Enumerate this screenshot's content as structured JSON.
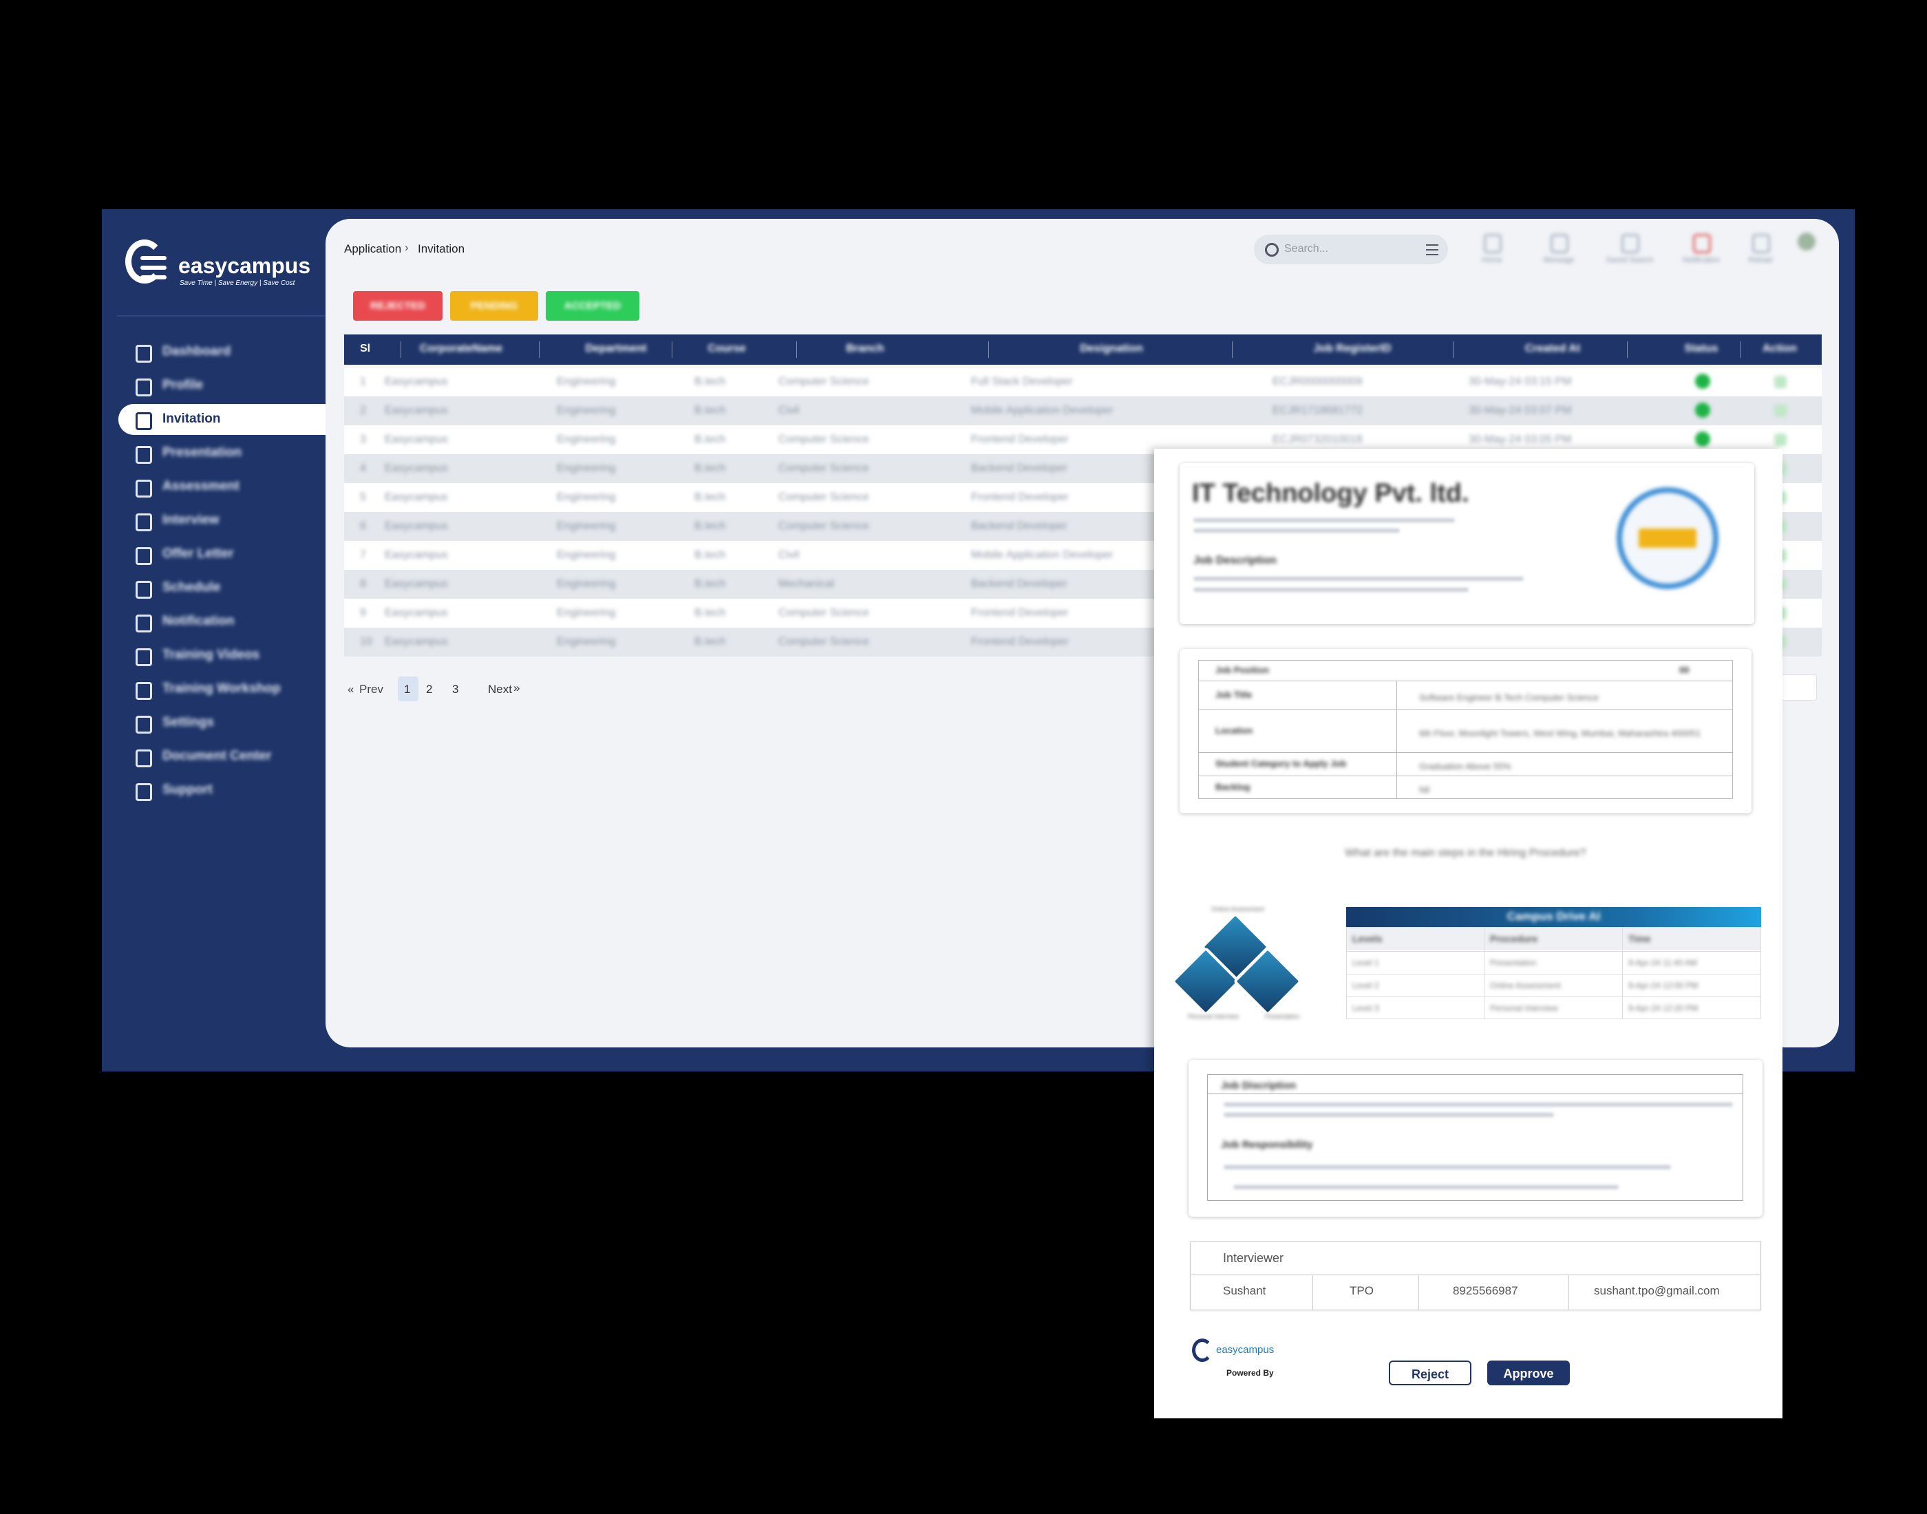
{
  "logo": {
    "brand": "easycampus",
    "tagline": "Save Time | Save Energy | Save Cost"
  },
  "sidebar": {
    "items": [
      "Dashboard",
      "Profile",
      "Invitation",
      "Presentation",
      "Assessment",
      "Interview",
      "Offer Letter",
      "Schedule",
      "Notification",
      "Training Videos",
      "Training Workshop",
      "Settings",
      "Document Center",
      "Support"
    ]
  },
  "breadcrumb": [
    "Application",
    "Invitation"
  ],
  "search": {
    "placeholder": "Search..."
  },
  "toolbar": [
    "Home",
    "Message",
    "Saved Search",
    "Notification",
    "Reload"
  ],
  "status_tabs": [
    "REJECTED",
    "PENDING",
    "ACCEPTED"
  ],
  "table": {
    "headers": [
      "Sl",
      "CorporateName",
      "Department",
      "Course",
      "Branch",
      "Designation",
      "Job RegisterID",
      "Created At",
      "Status",
      "Action"
    ],
    "rows": [
      [
        1,
        "Easycampus",
        "Engineering",
        "B.tech",
        "Computer Science",
        "Full Stack Developer",
        "ECJR0000000009",
        "30-May-24 03:15 PM"
      ],
      [
        2,
        "Easycampus",
        "Engineering",
        "B.tech",
        "Civil",
        "Mobile Application Developer",
        "ECJR1718681772",
        "30-May-24 03:07 PM"
      ],
      [
        3,
        "Easycampus",
        "Engineering",
        "B.tech",
        "Computer Science",
        "Frontend Developer",
        "ECJR0732010018",
        "30-May-24 03:05 PM"
      ],
      [
        4,
        "Easycampus",
        "Engineering",
        "B.tech",
        "Computer Science",
        "Backend Developer"
      ],
      [
        5,
        "Easycampus",
        "Engineering",
        "B.tech",
        "Computer Science",
        "Frontend Developer"
      ],
      [
        6,
        "Easycampus",
        "Engineering",
        "B.tech",
        "Computer Science",
        "Backend Developer"
      ],
      [
        7,
        "Easycampus",
        "Engineering",
        "B.tech",
        "Civil",
        "Mobile Application Developer"
      ],
      [
        8,
        "Easycampus",
        "Engineering",
        "B.tech",
        "Mechanical",
        "Backend Developer"
      ],
      [
        9,
        "Easycampus",
        "Engineering",
        "B.tech",
        "Computer Science",
        "Frontend Developer"
      ],
      [
        10,
        "Easycampus",
        "Engineering",
        "B.tech",
        "Computer Science",
        "Frontend Developer"
      ]
    ]
  },
  "pagination": {
    "prev": "Prev",
    "pages": [
      1,
      2,
      3
    ],
    "next": "Next"
  },
  "modal": {
    "company": {
      "name": "IT Technology Pvt. ltd.",
      "description_heading": "Job Description"
    },
    "job_details": [
      [
        "Job Position",
        "00"
      ],
      [
        "Job Title",
        "Software Engineer B.Tech Computer Science"
      ],
      [
        "Location",
        "6th Floor, Moonlight Towers, West Wing, Mumbai, Maharashtra 400051"
      ],
      [
        "Student Category to Apply Job",
        "Graduation Above 55%"
      ],
      [
        "Backlog",
        "Nil"
      ]
    ],
    "question": "What are the main steps in the Hiring Procedure?",
    "diagram_labels": [
      "Online Assessment",
      "Personal Interview",
      "Presentation"
    ],
    "drive": {
      "title": "Campus Drive AI",
      "headers": [
        "Levels",
        "Procedure",
        "Time"
      ],
      "rows": [
        [
          "Level 1",
          "Presentation",
          "9-Apr-24 11:40 AM"
        ],
        [
          "Level 2",
          "Online Assessment",
          "9-Apr-24 12:00 PM"
        ],
        [
          "Level 3",
          "Personal Interview",
          "9-Apr-24 12:20 PM"
        ]
      ]
    },
    "jd": {
      "description_heading": "Job Discription",
      "responsibility_heading": "Job Responsibility"
    },
    "interviewer": {
      "heading": "Interviewer",
      "row": [
        "Sushant",
        "TPO",
        "8925566987",
        "sushant.tpo@gmail.com"
      ]
    },
    "footer": {
      "brand": "easycampus",
      "powered": "Powered By",
      "reject": "Reject",
      "approve": "Approve"
    }
  }
}
